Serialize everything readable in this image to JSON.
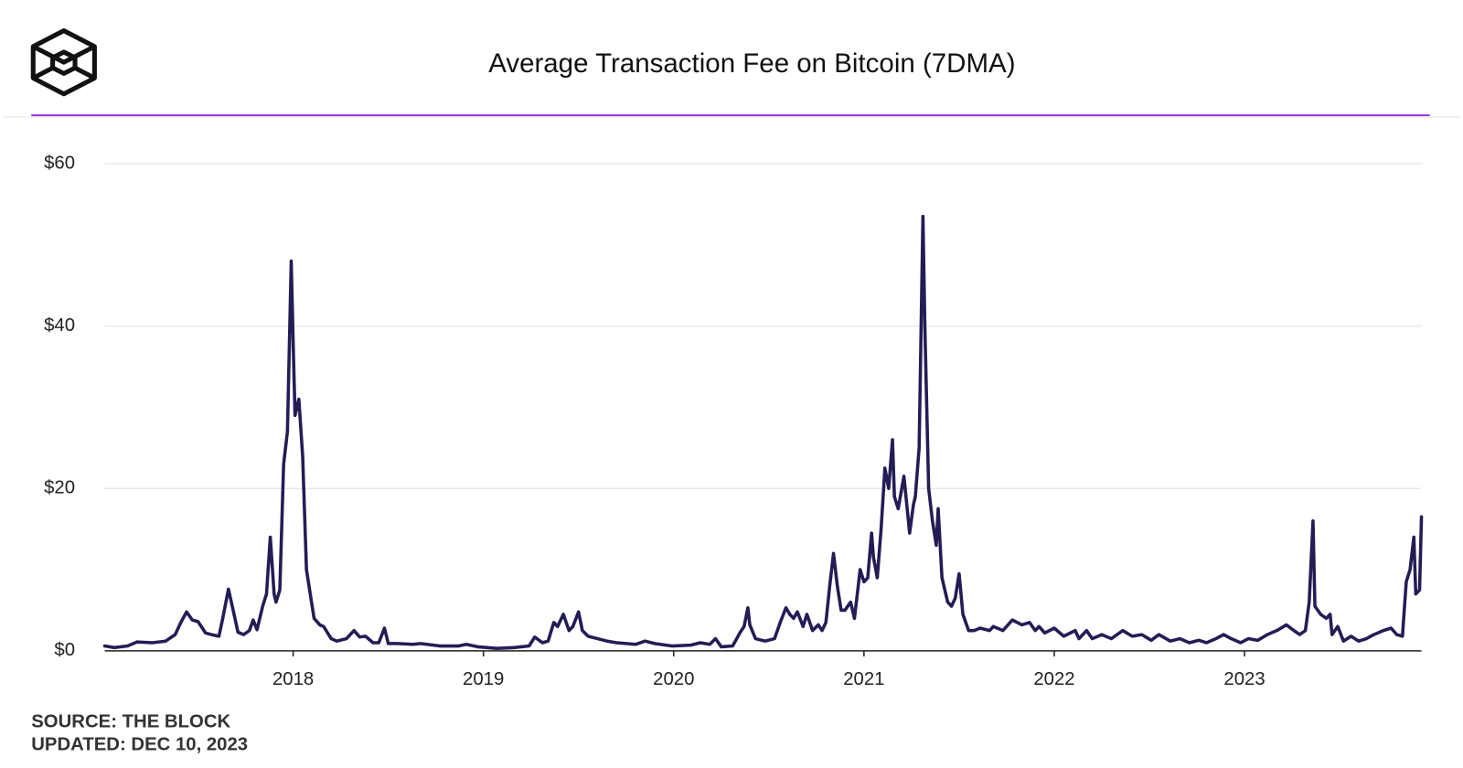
{
  "chart_data": {
    "type": "line",
    "title": "Average Transaction Fee on Bitcoin (7DMA)",
    "source": "SOURCE: THE BLOCK",
    "updated": "UPDATED: DEC 10, 2023",
    "color": "#231d55",
    "grid": true,
    "xlim": [
      2017.01,
      2023.93
    ],
    "xticks": [
      2018,
      2019,
      2020,
      2021,
      2022,
      2023
    ],
    "ylim": [
      0,
      60
    ],
    "yticks": [
      {
        "value": 0,
        "label": "$0"
      },
      {
        "value": 20,
        "label": "$20"
      },
      {
        "value": 40,
        "label": "$40"
      },
      {
        "value": 60,
        "label": "$60"
      }
    ],
    "x": [
      2017.01,
      2017.06,
      2017.13,
      2017.18,
      2017.26,
      2017.33,
      2017.38,
      2017.41,
      2017.44,
      2017.47,
      2017.5,
      2017.54,
      2017.57,
      2017.61,
      2017.63,
      2017.66,
      2017.68,
      2017.71,
      2017.74,
      2017.77,
      2017.79,
      2017.81,
      2017.84,
      2017.86,
      2017.88,
      2017.9,
      2017.91,
      2017.93,
      2017.95,
      2017.97,
      2017.99,
      2018.0,
      2018.01,
      2018.03,
      2018.05,
      2018.07,
      2018.09,
      2018.11,
      2018.14,
      2018.16,
      2018.2,
      2018.23,
      2018.28,
      2018.32,
      2018.35,
      2018.38,
      2018.42,
      2018.45,
      2018.48,
      2018.5,
      2018.55,
      2018.63,
      2018.67,
      2018.77,
      2018.87,
      2018.91,
      2018.97,
      2019.07,
      2019.16,
      2019.24,
      2019.27,
      2019.31,
      2019.34,
      2019.37,
      2019.39,
      2019.42,
      2019.45,
      2019.47,
      2019.5,
      2019.52,
      2019.55,
      2019.6,
      2019.65,
      2019.7,
      2019.8,
      2019.85,
      2019.9,
      2019.99,
      2020.09,
      2020.14,
      2020.19,
      2020.22,
      2020.25,
      2020.31,
      2020.35,
      2020.37,
      2020.39,
      2020.4,
      2020.43,
      2020.48,
      2020.53,
      2020.56,
      2020.59,
      2020.61,
      2020.63,
      2020.65,
      2020.68,
      2020.7,
      2020.73,
      2020.76,
      2020.78,
      2020.8,
      2020.82,
      2020.84,
      2020.86,
      2020.88,
      2020.9,
      2020.93,
      2020.95,
      2020.98,
      2021.0,
      2021.02,
      2021.04,
      2021.05,
      2021.07,
      2021.09,
      2021.11,
      2021.13,
      2021.15,
      2021.16,
      2021.18,
      2021.21,
      2021.24,
      2021.26,
      2021.27,
      2021.29,
      2021.31,
      2021.32,
      2021.34,
      2021.36,
      2021.38,
      2021.39,
      2021.41,
      2021.44,
      2021.46,
      2021.48,
      2021.5,
      2021.52,
      2021.55,
      2021.58,
      2021.61,
      2021.66,
      2021.68,
      2021.73,
      2021.78,
      2021.83,
      2021.87,
      2021.9,
      2021.92,
      2021.95,
      2022.0,
      2022.05,
      2022.11,
      2022.13,
      2022.17,
      2022.2,
      2022.25,
      2022.3,
      2022.36,
      2022.41,
      2022.46,
      2022.51,
      2022.55,
      2022.61,
      2022.66,
      2022.71,
      2022.76,
      2022.8,
      2022.85,
      2022.89,
      2022.93,
      2022.98,
      2023.02,
      2023.07,
      2023.12,
      2023.17,
      2023.22,
      2023.26,
      2023.29,
      2023.32,
      2023.34,
      2023.36,
      2023.37,
      2023.4,
      2023.43,
      2023.45,
      2023.46,
      2023.49,
      2023.52,
      2023.56,
      2023.6,
      2023.64,
      2023.68,
      2023.73,
      2023.77,
      2023.8,
      2023.83,
      2023.85,
      2023.87,
      2023.89,
      2023.9,
      2023.92,
      2023.93
    ],
    "values": [
      0.6,
      0.4,
      0.6,
      1.1,
      1.0,
      1.2,
      2.0,
      3.5,
      4.8,
      3.8,
      3.6,
      2.2,
      2.0,
      1.8,
      4.0,
      7.6,
      5.5,
      2.3,
      2.0,
      2.5,
      3.8,
      2.6,
      5.5,
      7.0,
      14.0,
      7.0,
      6.0,
      7.5,
      23.0,
      27.0,
      48.0,
      38.0,
      29.0,
      31.0,
      24.0,
      10.0,
      7.0,
      4.0,
      3.2,
      3.0,
      1.5,
      1.2,
      1.5,
      2.5,
      1.7,
      1.8,
      1.0,
      1.0,
      2.8,
      0.9,
      0.9,
      0.8,
      0.9,
      0.6,
      0.6,
      0.8,
      0.5,
      0.3,
      0.4,
      0.6,
      1.7,
      1.0,
      1.2,
      3.5,
      3.0,
      4.5,
      2.5,
      3.0,
      4.8,
      2.5,
      1.8,
      1.5,
      1.2,
      1.0,
      0.8,
      1.2,
      0.9,
      0.6,
      0.7,
      1.0,
      0.8,
      1.5,
      0.5,
      0.6,
      2.3,
      3.0,
      5.3,
      3.2,
      1.5,
      1.2,
      1.5,
      3.5,
      5.3,
      4.5,
      4.0,
      4.8,
      3.0,
      4.5,
      2.5,
      3.2,
      2.5,
      3.5,
      8.0,
      12.0,
      8.0,
      5.0,
      5.0,
      6.0,
      4.0,
      10.0,
      8.5,
      9.0,
      14.5,
      11.5,
      9.0,
      15.0,
      22.5,
      20.0,
      26.0,
      19.0,
      17.5,
      21.5,
      14.5,
      18.0,
      19.0,
      25.0,
      53.5,
      40.0,
      20.0,
      16.0,
      13.0,
      17.5,
      9.0,
      6.0,
      5.5,
      6.5,
      9.5,
      4.5,
      2.5,
      2.5,
      2.8,
      2.5,
      3.0,
      2.5,
      3.8,
      3.2,
      3.5,
      2.5,
      3.0,
      2.2,
      2.8,
      1.8,
      2.5,
      1.5,
      2.5,
      1.5,
      2.0,
      1.5,
      2.5,
      1.8,
      2.0,
      1.3,
      2.0,
      1.2,
      1.5,
      1.0,
      1.3,
      1.0,
      1.5,
      2.0,
      1.5,
      1.0,
      1.5,
      1.3,
      2.0,
      2.5,
      3.2,
      2.5,
      2.0,
      2.5,
      6.0,
      16.0,
      5.5,
      4.5,
      4.0,
      4.5,
      2.0,
      3.0,
      1.2,
      1.8,
      1.2,
      1.5,
      2.0,
      2.5,
      2.8,
      2.0,
      1.8,
      8.5,
      10.0,
      14.0,
      7.0,
      7.5,
      16.5
    ]
  }
}
